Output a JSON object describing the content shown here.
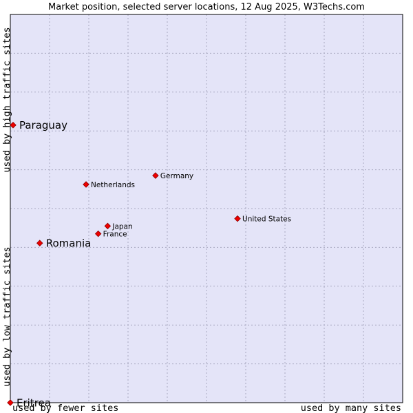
{
  "chart_data": {
    "type": "scatter",
    "title": "Market position, selected server locations, 12 Aug 2025, W3Techs.com",
    "x_axis": {
      "low_label": "used by fewer sites",
      "high_label": "used by many sites",
      "range": [
        0,
        100
      ]
    },
    "y_axis": {
      "low_label": "used by low traffic sites",
      "high_label": "used by high traffic sites",
      "range": [
        0,
        100
      ]
    },
    "grid": true,
    "grid_divisions": 10,
    "colors": {
      "plot_background": "#e4e4f8",
      "grid": "#a8a8c0",
      "border": "#000000",
      "marker": "#ee0000",
      "marker_outline": "#8b0000"
    },
    "points": [
      {
        "label": "Paraguay",
        "x": 0.7,
        "y": 71.5,
        "highlight": true
      },
      {
        "label": "Germany",
        "x": 37.0,
        "y": 58.5,
        "highlight": false
      },
      {
        "label": "Netherlands",
        "x": 19.3,
        "y": 56.2,
        "highlight": false
      },
      {
        "label": "United States",
        "x": 57.9,
        "y": 47.4,
        "highlight": false
      },
      {
        "label": "Japan",
        "x": 24.8,
        "y": 45.5,
        "highlight": false
      },
      {
        "label": "France",
        "x": 22.4,
        "y": 43.5,
        "highlight": false
      },
      {
        "label": "Romania",
        "x": 7.5,
        "y": 41.1,
        "highlight": true
      },
      {
        "label": "Eritrea",
        "x": 0.0,
        "y": 0.0,
        "highlight": true
      }
    ]
  }
}
